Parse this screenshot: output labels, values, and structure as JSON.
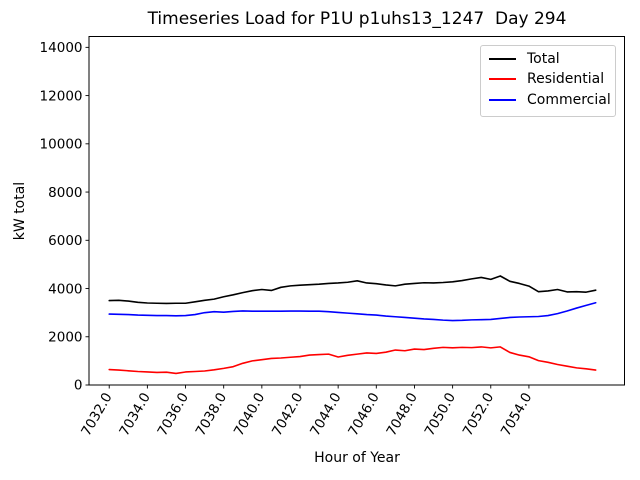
{
  "chart": {
    "title": "Timeseries Load for P1U p1uhs13_1247  Day 294",
    "xlabel": "Hour of Year",
    "ylabel": "kW total"
  },
  "chart_data": {
    "type": "line",
    "title": "Timeseries Load for P1U p1uhs13_1247  Day 294",
    "xlabel": "Hour of Year",
    "ylabel": "kW total",
    "grid": false,
    "legend_position": "upper right",
    "xlim": [
      7030.94,
      7059.01
    ],
    "ylim": [
      0,
      14450
    ],
    "xticks": {
      "values": [
        7032,
        7034,
        7036,
        7038,
        7040,
        7042,
        7044,
        7046,
        7048,
        7050,
        7052,
        7054
      ],
      "labels": [
        "7032.0",
        "7034.0",
        "7036.0",
        "7038.0",
        "7040.0",
        "7042.0",
        "7044.0",
        "7046.0",
        "7048.0",
        "7050.0",
        "7052.0",
        "7054.0"
      ]
    },
    "yticks": {
      "values": [
        0,
        2000,
        4000,
        6000,
        8000,
        10000,
        12000,
        14000
      ],
      "labels": [
        "0",
        "2000",
        "4000",
        "6000",
        "8000",
        "10000",
        "12000",
        "14000"
      ]
    },
    "x": [
      7032.0,
      7032.5,
      7033.0,
      7033.5,
      7034.0,
      7034.5,
      7035.0,
      7035.5,
      7036.0,
      7036.5,
      7037.0,
      7037.5,
      7038.0,
      7038.5,
      7039.0,
      7039.5,
      7040.0,
      7040.5,
      7041.0,
      7041.5,
      7042.0,
      7042.5,
      7043.0,
      7043.5,
      7044.0,
      7044.5,
      7045.0,
      7045.5,
      7046.0,
      7046.5,
      7047.0,
      7047.5,
      7048.0,
      7048.5,
      7049.0,
      7049.5,
      7050.0,
      7050.5,
      7051.0,
      7051.5,
      7052.0,
      7052.5,
      7053.0,
      7053.5,
      7054.0,
      7054.5,
      7055.0,
      7055.5,
      7056.0,
      7056.5,
      7057.0,
      7057.5
    ],
    "series": [
      {
        "name": "Total",
        "color": "#000000",
        "values": [
          3500,
          3510,
          3480,
          3430,
          3400,
          3390,
          3380,
          3390,
          3390,
          3450,
          3510,
          3560,
          3660,
          3740,
          3830,
          3910,
          3960,
          3920,
          4050,
          4110,
          4140,
          4160,
          4180,
          4210,
          4230,
          4260,
          4320,
          4230,
          4200,
          4150,
          4110,
          4180,
          4210,
          4240,
          4230,
          4250,
          4280,
          4330,
          4400,
          4460,
          4380,
          4520,
          4300,
          4210,
          4100,
          3870,
          3900,
          3960,
          3860,
          3870,
          3850,
          3930
        ]
      },
      {
        "name": "Residential",
        "color": "#ff0000",
        "values": [
          640,
          620,
          590,
          560,
          540,
          520,
          530,
          480,
          540,
          560,
          580,
          630,
          690,
          760,
          900,
          1000,
          1050,
          1100,
          1120,
          1150,
          1180,
          1240,
          1260,
          1280,
          1160,
          1230,
          1280,
          1330,
          1310,
          1360,
          1450,
          1420,
          1490,
          1470,
          1520,
          1560,
          1540,
          1560,
          1550,
          1580,
          1540,
          1580,
          1350,
          1240,
          1170,
          1010,
          940,
          850,
          780,
          710,
          670,
          620
        ]
      },
      {
        "name": "Commercial",
        "color": "#0000ff",
        "values": [
          2940,
          2930,
          2920,
          2900,
          2890,
          2880,
          2880,
          2870,
          2880,
          2920,
          3000,
          3040,
          3020,
          3050,
          3070,
          3060,
          3060,
          3060,
          3060,
          3065,
          3065,
          3060,
          3060,
          3040,
          3010,
          2980,
          2950,
          2920,
          2900,
          2860,
          2830,
          2800,
          2770,
          2740,
          2720,
          2690,
          2670,
          2680,
          2700,
          2710,
          2720,
          2760,
          2800,
          2820,
          2830,
          2840,
          2880,
          2960,
          3070,
          3190,
          3300,
          3410
        ]
      }
    ]
  }
}
